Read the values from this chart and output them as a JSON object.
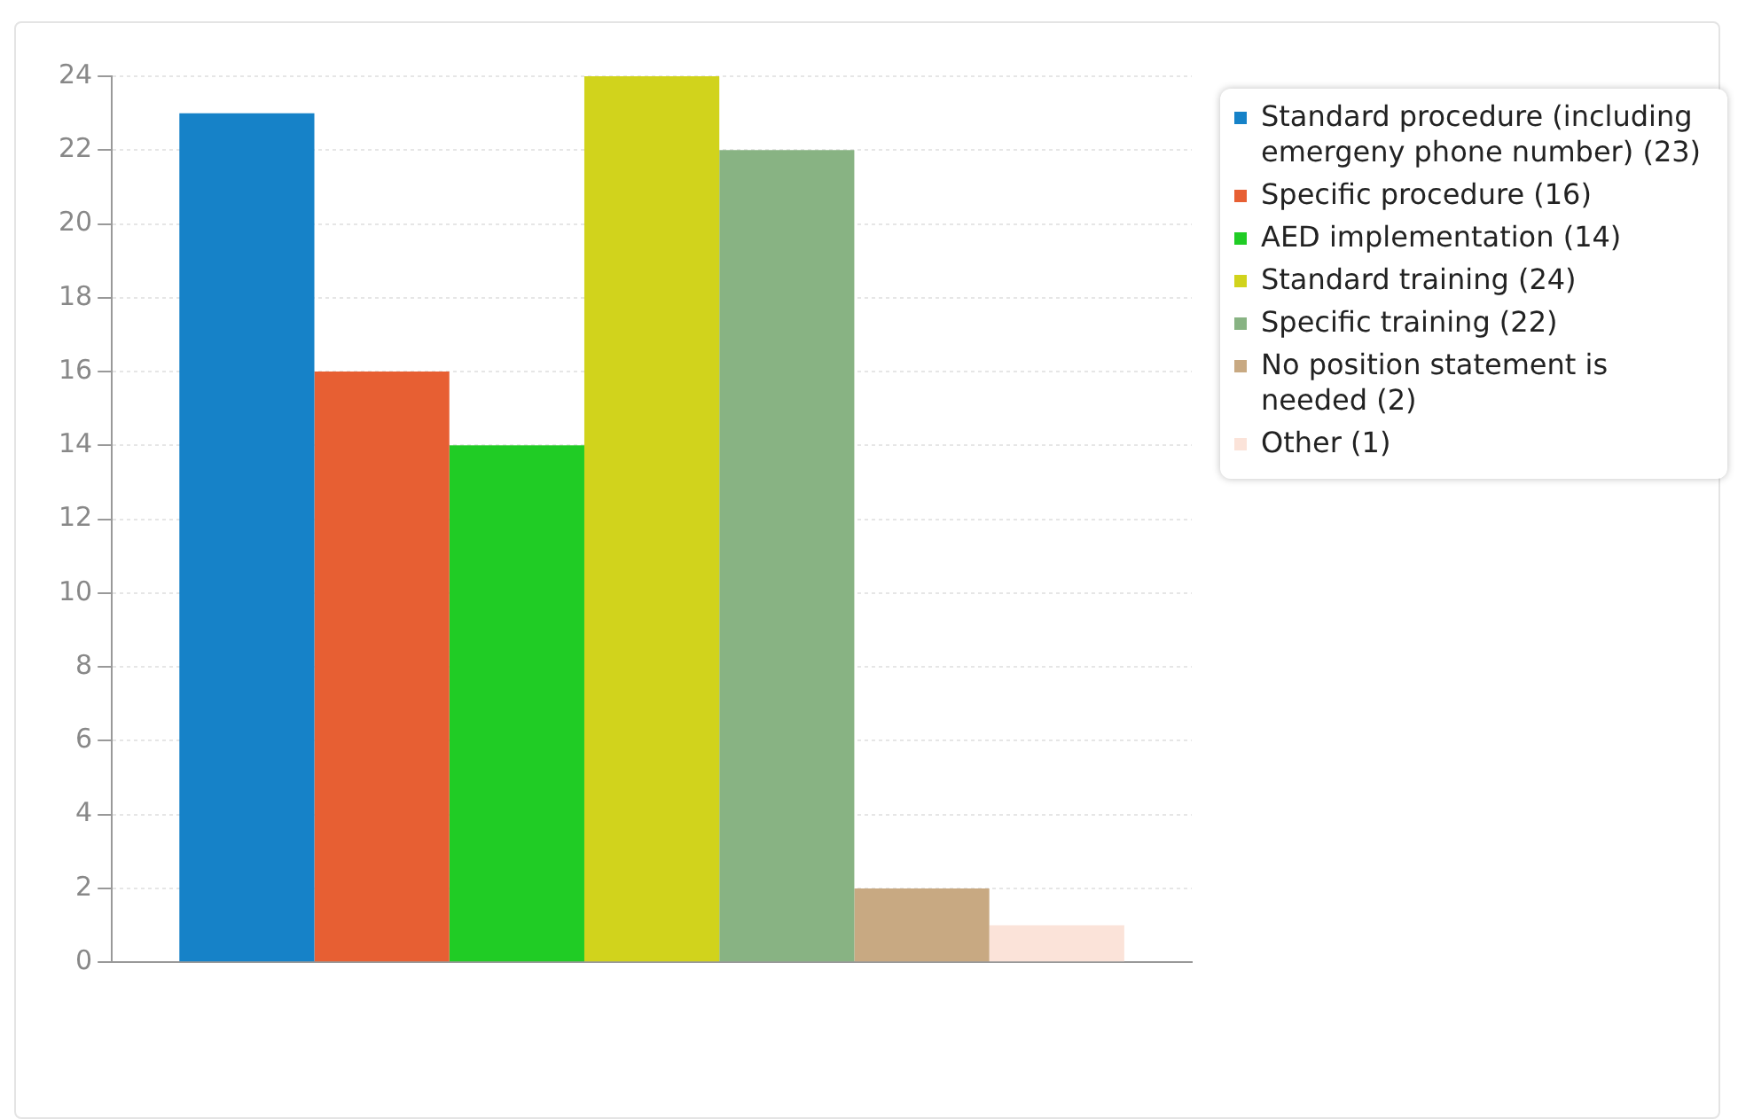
{
  "chart_data": {
    "type": "bar",
    "categories": [
      null
    ],
    "series": [
      {
        "name": "Standard procedure (including emergeny phone number) (23)",
        "color": "#1682c8",
        "values": [
          23
        ]
      },
      {
        "name": "Specific procedure (16)",
        "color": "#e75f33",
        "values": [
          16
        ]
      },
      {
        "name": "AED implementation (14)",
        "color": "#20cc25",
        "values": [
          14
        ]
      },
      {
        "name": "Standard training (24)",
        "color": "#d1d31c",
        "values": [
          24
        ]
      },
      {
        "name": "Specific training (22)",
        "color": "#88b383",
        "values": [
          22
        ]
      },
      {
        "name": "No position statement is needed (2)",
        "color": "#c8a982",
        "values": [
          2
        ]
      },
      {
        "name": "Other (1)",
        "color": "#fbe3d9",
        "values": [
          1
        ]
      }
    ],
    "ylim": [
      0,
      24
    ],
    "yticks": [
      0,
      2,
      4,
      6,
      8,
      10,
      12,
      14,
      16,
      18,
      20,
      22,
      24
    ],
    "grid": "y",
    "legend": "top right"
  }
}
